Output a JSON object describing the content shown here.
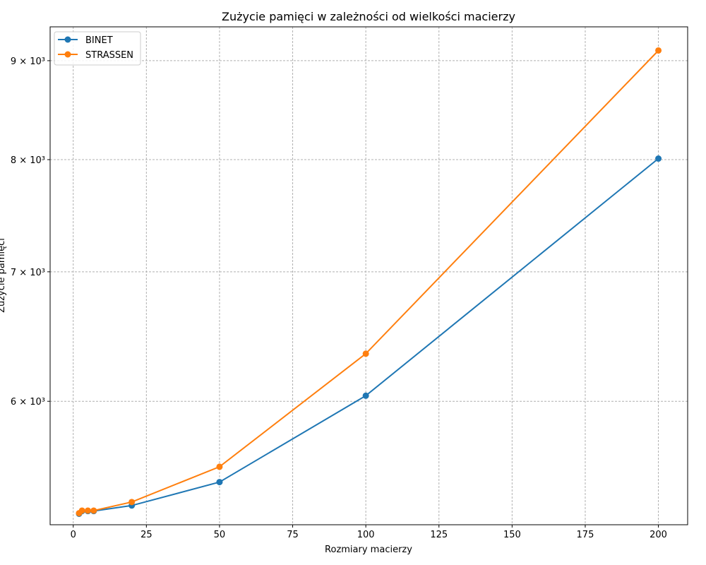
{
  "chart_data": {
    "type": "line",
    "title": "Zużycie pamięci w zależności od wielkości macierzy",
    "xlabel": "Rozmiary macierzy",
    "ylabel": "Zużycie pamięci",
    "yscale": "log",
    "xlim": [
      -7.9,
      210
    ],
    "ylim": [
      5180,
      9370
    ],
    "x_ticks": [
      0,
      25,
      50,
      75,
      100,
      125,
      150,
      175,
      200
    ],
    "y_ticks": [
      {
        "value": 6000,
        "label": "6 × 10³"
      },
      {
        "value": 7000,
        "label": "7 × 10³"
      },
      {
        "value": 8000,
        "label": "8 × 10³"
      },
      {
        "value": 9000,
        "label": "9 × 10³"
      }
    ],
    "grid": true,
    "legend_position": "top-left",
    "series": [
      {
        "name": "BINET",
        "color": "#1f77b4",
        "x": [
          2,
          3,
          5,
          7,
          20,
          50,
          100,
          200
        ],
        "y": [
          5248,
          5265,
          5265,
          5265,
          5300,
          5450,
          6040,
          8010
        ]
      },
      {
        "name": "STRASSEN",
        "color": "#ff7f0e",
        "x": [
          2,
          3,
          5,
          7,
          20,
          50,
          100,
          200
        ],
        "y": [
          5252,
          5268,
          5268,
          5268,
          5322,
          5550,
          6350,
          9110
        ]
      }
    ]
  }
}
